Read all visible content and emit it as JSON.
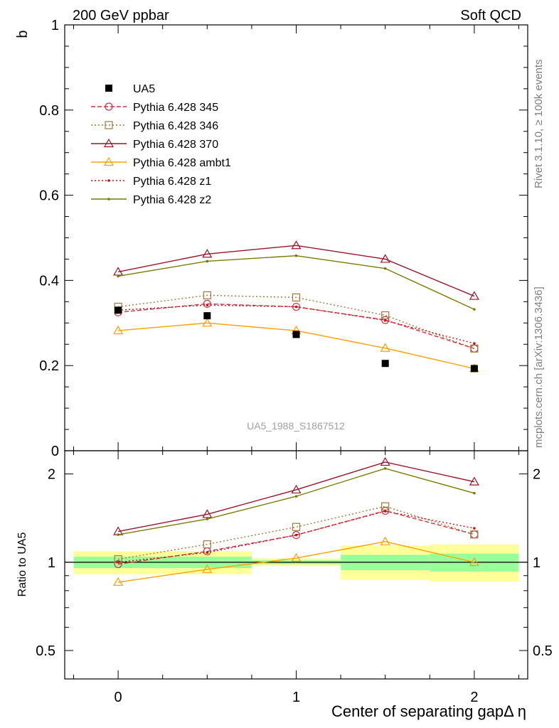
{
  "header": {
    "left": "200 GeV ppbar",
    "right": "Soft QCD"
  },
  "side_labels": {
    "rivet": "Rivet 3.1.10, ≥ 100k events",
    "mcplots": "mcplots.cern.ch [arXiv:1306.3436]"
  },
  "colors": {
    "band_inner": "#99ff99",
    "band_outer": "#ffff99"
  },
  "chart_data": [
    {
      "type": "line",
      "ylabel": "b",
      "xlabel": "",
      "watermark": "UA5_1988_S1867512",
      "xlim": [
        -0.3,
        2.3
      ],
      "ylim": [
        0,
        1
      ],
      "x_ticks": [
        0,
        1,
        2
      ],
      "y_ticks": [
        0,
        0.2,
        0.4,
        0.6,
        0.8,
        1
      ],
      "y_tick_labels": [
        "0",
        "0.2",
        "0.4",
        "0.6",
        "0.8",
        "1"
      ],
      "legend_position": "top-left",
      "data": {
        "name": "UA5",
        "x": [
          0,
          0.5,
          1,
          1.5,
          2
        ],
        "y": [
          0.33,
          0.317,
          0.273,
          0.205,
          0.193
        ]
      },
      "series": [
        {
          "name": "Pythia 6.428 345",
          "color": "#cc3344",
          "dash": "6,3",
          "marker": "circle",
          "x": [
            0,
            0.5,
            1,
            1.5,
            2
          ],
          "y": [
            0.325,
            0.345,
            0.338,
            0.307,
            0.24
          ]
        },
        {
          "name": "Pythia 6.428 346",
          "color": "#a07838",
          "dash": "2,3",
          "marker": "square",
          "x": [
            0,
            0.5,
            1,
            1.5,
            2
          ],
          "y": [
            0.338,
            0.365,
            0.36,
            0.318,
            0.24
          ]
        },
        {
          "name": "Pythia 6.428 370",
          "color": "#99142a",
          "dash": "",
          "marker": "triangle",
          "x": [
            0,
            0.5,
            1,
            1.5,
            2
          ],
          "y": [
            0.42,
            0.462,
            0.482,
            0.45,
            0.363
          ]
        },
        {
          "name": "Pythia 6.428 ambt1",
          "color": "#ff9f00",
          "dash": "",
          "marker": "triangle",
          "x": [
            0,
            0.5,
            1,
            1.5,
            2
          ],
          "y": [
            0.282,
            0.3,
            0.282,
            0.241,
            0.193
          ]
        },
        {
          "name": "Pythia 6.428 z1",
          "color": "#cc1111",
          "dash": "2,3",
          "marker": "dot",
          "x": [
            0,
            0.5,
            1,
            1.5,
            2
          ],
          "y": [
            0.33,
            0.342,
            0.338,
            0.306,
            0.252
          ]
        },
        {
          "name": "Pythia 6.428 z2",
          "color": "#7a7a00",
          "dash": "",
          "marker": "dot",
          "x": [
            0,
            0.5,
            1,
            1.5,
            2
          ],
          "y": [
            0.41,
            0.445,
            0.458,
            0.428,
            0.332
          ]
        }
      ]
    },
    {
      "type": "line",
      "ylabel": "Ratio to UA5",
      "xlabel": "Center of separating gapΔ η",
      "scale": "log",
      "xlim": [
        -0.3,
        2.3
      ],
      "ylim": [
        0.4,
        2.4
      ],
      "x_ticks": [
        0,
        1,
        2
      ],
      "x_tick_labels": [
        "0",
        "1",
        "2"
      ],
      "y_ticks": [
        0.5,
        1,
        2
      ],
      "y_tick_labels": [
        "0.5",
        "1",
        "2"
      ],
      "bands": [
        {
          "x_from": -0.25,
          "x_to": 0.75,
          "inner": [
            0.955,
            1.045
          ],
          "outer": [
            0.91,
            1.09
          ]
        },
        {
          "x_from": 0.75,
          "x_to": 1.25,
          "inner": [
            0.985,
            1.015
          ],
          "outer": [
            0.97,
            1.03
          ]
        },
        {
          "x_from": 1.25,
          "x_to": 1.75,
          "inner": [
            0.94,
            1.06
          ],
          "outer": [
            0.87,
            1.14
          ]
        },
        {
          "x_from": 1.75,
          "x_to": 2.25,
          "inner": [
            0.93,
            1.07
          ],
          "outer": [
            0.86,
            1.15
          ]
        }
      ],
      "series": [
        {
          "name": "Pythia 6.428 345",
          "x": [
            0,
            0.5,
            1,
            1.5,
            2
          ],
          "y": [
            0.985,
            1.089,
            1.238,
            1.498,
            1.244
          ]
        },
        {
          "name": "Pythia 6.428 346",
          "x": [
            0,
            0.5,
            1,
            1.5,
            2
          ],
          "y": [
            1.024,
            1.151,
            1.319,
            1.551,
            1.244
          ]
        },
        {
          "name": "Pythia 6.428 370",
          "x": [
            0,
            0.5,
            1,
            1.5,
            2
          ],
          "y": [
            1.273,
            1.457,
            1.766,
            2.195,
            1.881
          ]
        },
        {
          "name": "Pythia 6.428 ambt1",
          "x": [
            0,
            0.5,
            1,
            1.5,
            2
          ],
          "y": [
            0.855,
            0.946,
            1.033,
            1.176,
            1.0
          ]
        },
        {
          "name": "Pythia 6.428 z1",
          "x": [
            0,
            0.5,
            1,
            1.5,
            2
          ],
          "y": [
            1.0,
            1.079,
            1.238,
            1.493,
            1.306
          ]
        },
        {
          "name": "Pythia 6.428 z2",
          "x": [
            0,
            0.5,
            1,
            1.5,
            2
          ],
          "y": [
            1.242,
            1.404,
            1.678,
            2.088,
            1.72
          ]
        }
      ]
    }
  ]
}
